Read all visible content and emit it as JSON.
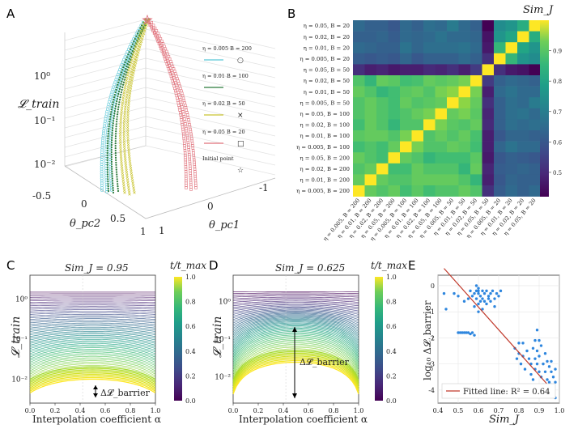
{
  "panel_labels": [
    "A",
    "B",
    "C",
    "D",
    "E"
  ],
  "chart_data": [
    {
      "id": "A",
      "type": "scatter3d",
      "xlabel": "θ_pc1",
      "ylabel": "θ_pc2",
      "zlabel": "𝓛_train",
      "pc1_ticks": [
        "-1",
        "0",
        "1"
      ],
      "pc2_ticks": [
        "-0.5",
        "0",
        "0.5",
        "1"
      ],
      "z_ticks": [
        "10⁰",
        "10⁻¹",
        "10⁻²"
      ],
      "legend": [
        {
          "label": "η = 0.005 B = 200",
          "marker": "○",
          "color": "#5bc8d8"
        },
        {
          "label": "η = 0.01  B = 100",
          "marker": "",
          "color": "#2b7a3a"
        },
        {
          "label": "η = 0.02  B = 50",
          "marker": "×",
          "color": "#c9c430"
        },
        {
          "label": "η = 0.05  B = 20",
          "marker": "□",
          "color": "#e0707a"
        },
        {
          "label": "Initial point",
          "marker": "☆",
          "color": "#888888"
        }
      ]
    },
    {
      "id": "B",
      "type": "heatmap",
      "colorbar_label": "Sim_J",
      "colorbar_ticks": [
        "0.9",
        "0.8",
        "0.7",
        "0.6",
        "0.5"
      ],
      "crange": [
        0.42,
        1.0
      ],
      "row_labels": [
        "η = 0.05, B = 20",
        "η = 0.02, B = 20",
        "η = 0.01, B = 20",
        "η = 0.005, B = 20",
        "η = 0.05, B = 50",
        "η = 0.02, B = 50",
        "η = 0.01, B = 50",
        "η = 0.005, B = 50",
        "η = 0.05, B = 100",
        "η = 0.02, B = 100",
        "η = 0.01, B = 100",
        "η = 0.005, B = 100",
        "η = 0.05, B = 200",
        "η = 0.02, B = 200",
        "η = 0.01, B = 200",
        "η = 0.005, B = 200"
      ],
      "col_labels": [
        "η = 0.005, B = 200",
        "η = 0.01, B = 200",
        "η = 0.02, B = 200",
        "η = 0.05, B = 200",
        "η = 0.005, B = 100",
        "η = 0.01, B = 100",
        "η = 0.02, B = 100",
        "η = 0.05, B = 100",
        "η = 0.005, B = 50",
        "η = 0.01, B = 50",
        "η = 0.02, B = 50",
        "η = 0.05, B = 50",
        "η = 0.005, B = 20",
        "η = 0.01, B = 20",
        "η = 0.02, B = 20",
        "η = 0.05, B = 20"
      ],
      "values": [
        [
          0.62,
          0.6,
          0.6,
          0.58,
          0.62,
          0.6,
          0.63,
          0.62,
          0.66,
          0.62,
          0.6,
          0.42,
          0.7,
          0.72,
          0.78,
          1.0
        ],
        [
          0.6,
          0.6,
          0.61,
          0.59,
          0.62,
          0.61,
          0.62,
          0.64,
          0.62,
          0.62,
          0.61,
          0.45,
          0.72,
          0.76,
          1.0,
          0.78
        ],
        [
          0.62,
          0.61,
          0.6,
          0.6,
          0.64,
          0.61,
          0.63,
          0.63,
          0.63,
          0.64,
          0.62,
          0.46,
          0.8,
          1.0,
          0.76,
          0.72
        ],
        [
          0.59,
          0.58,
          0.59,
          0.58,
          0.61,
          0.58,
          0.6,
          0.6,
          0.6,
          0.62,
          0.6,
          0.5,
          1.0,
          0.8,
          0.72,
          0.7
        ],
        [
          0.5,
          0.47,
          0.48,
          0.46,
          0.47,
          0.47,
          0.49,
          0.48,
          0.5,
          0.47,
          0.52,
          1.0,
          0.5,
          0.46,
          0.45,
          0.42
        ],
        [
          0.84,
          0.8,
          0.86,
          0.85,
          0.82,
          0.83,
          0.86,
          0.85,
          0.86,
          0.88,
          1.0,
          0.52,
          0.6,
          0.62,
          0.61,
          0.6
        ],
        [
          0.86,
          0.84,
          0.8,
          0.82,
          0.85,
          0.86,
          0.84,
          0.88,
          0.9,
          1.0,
          0.88,
          0.47,
          0.62,
          0.64,
          0.62,
          0.62
        ],
        [
          0.84,
          0.86,
          0.84,
          0.82,
          0.86,
          0.84,
          0.85,
          0.86,
          1.0,
          0.9,
          0.86,
          0.5,
          0.6,
          0.63,
          0.62,
          0.66
        ],
        [
          0.84,
          0.86,
          0.84,
          0.82,
          0.84,
          0.86,
          0.88,
          1.0,
          0.86,
          0.88,
          0.85,
          0.48,
          0.6,
          0.63,
          0.64,
          0.62
        ],
        [
          0.82,
          0.86,
          0.84,
          0.8,
          0.84,
          0.84,
          1.0,
          0.88,
          0.85,
          0.84,
          0.86,
          0.49,
          0.6,
          0.63,
          0.62,
          0.63
        ],
        [
          0.85,
          0.86,
          0.86,
          0.84,
          0.88,
          1.0,
          0.84,
          0.86,
          0.84,
          0.86,
          0.83,
          0.47,
          0.58,
          0.61,
          0.61,
          0.6
        ],
        [
          0.82,
          0.84,
          0.82,
          0.86,
          1.0,
          0.88,
          0.84,
          0.84,
          0.86,
          0.85,
          0.82,
          0.47,
          0.61,
          0.64,
          0.62,
          0.62
        ],
        [
          0.86,
          0.84,
          0.82,
          1.0,
          0.86,
          0.84,
          0.8,
          0.82,
          0.82,
          0.82,
          0.85,
          0.46,
          0.58,
          0.6,
          0.59,
          0.58
        ],
        [
          0.84,
          0.86,
          1.0,
          0.82,
          0.82,
          0.86,
          0.84,
          0.84,
          0.84,
          0.8,
          0.86,
          0.48,
          0.59,
          0.6,
          0.61,
          0.6
        ],
        [
          0.86,
          1.0,
          0.86,
          0.84,
          0.84,
          0.86,
          0.86,
          0.86,
          0.86,
          0.84,
          0.8,
          0.47,
          0.58,
          0.61,
          0.6,
          0.6
        ],
        [
          1.0,
          0.86,
          0.84,
          0.86,
          0.82,
          0.85,
          0.82,
          0.84,
          0.84,
          0.86,
          0.84,
          0.5,
          0.59,
          0.62,
          0.6,
          0.62
        ]
      ]
    },
    {
      "id": "C",
      "type": "line",
      "title": "Sim_J = 0.95",
      "xlabel": "Interpolation coefficient α",
      "ylabel": "𝓛_train",
      "x_ticks": [
        "0.0",
        "0.2",
        "0.4",
        "0.6",
        "0.8",
        "1.0"
      ],
      "y_ticks": [
        "10⁰",
        "10⁻¹",
        "10⁻²"
      ],
      "colorbar_label": "t/t_max",
      "colorbar_ticks": [
        "1.0",
        "0.8",
        "0.6",
        "0.4",
        "0.2",
        "0.0"
      ],
      "annotation": "Δ𝓛_barrier",
      "curve_count": 60,
      "loss_start": 1.5,
      "loss_end": 0.0045,
      "barrier_start": 0.0,
      "barrier_end": 0.38,
      "ylim_log10": [
        -2.6,
        0.6
      ]
    },
    {
      "id": "D",
      "type": "line",
      "title": "Sim_J = 0.625",
      "xlabel": "Interpolation coefficient α",
      "ylabel": "𝓛_train",
      "x_ticks": [
        "0.0",
        "0.2",
        "0.4",
        "0.6",
        "0.8",
        "1.0"
      ],
      "y_ticks": [
        "10⁰",
        "10⁻¹",
        "10⁻²"
      ],
      "colorbar_label": "t/t_max",
      "colorbar_ticks": [
        "1.0",
        "0.8",
        "0.6",
        "0.4",
        "0.2",
        "0.0"
      ],
      "annotation": "Δ𝓛_barrier",
      "curve_count": 60,
      "loss_start": 1.8,
      "loss_end": 0.0035,
      "barrier_start": 0.08,
      "barrier_end": 1.85,
      "ylim_log10": [
        -2.7,
        0.7
      ]
    },
    {
      "id": "E",
      "type": "scatter",
      "xlabel": "Sim_J",
      "ylabel": "log₁₀ Δ𝓛_barrier",
      "x_ticks": [
        "0.4",
        "0.5",
        "0.6",
        "0.7",
        "0.8",
        "0.9",
        "1.0"
      ],
      "y_ticks": [
        "0",
        "-1",
        "-2",
        "-3",
        "-4"
      ],
      "xlim": [
        0.4,
        1.0
      ],
      "ylim": [
        -4.5,
        0.4
      ],
      "legend": "Fitted line: R² = 0.64",
      "fit": {
        "slope": -8.7,
        "intercept": 4.4,
        "x_range": [
          0.43,
          0.97
        ]
      },
      "points": [
        [
          0.43,
          -0.3
        ],
        [
          0.44,
          -0.9
        ],
        [
          0.48,
          -0.3
        ],
        [
          0.5,
          -1.8
        ],
        [
          0.51,
          -1.8
        ],
        [
          0.52,
          -1.8
        ],
        [
          0.53,
          -1.8
        ],
        [
          0.54,
          -1.8
        ],
        [
          0.55,
          -1.8
        ],
        [
          0.56,
          -1.85
        ],
        [
          0.57,
          -1.8
        ],
        [
          0.58,
          -1.9
        ],
        [
          0.5,
          -0.4
        ],
        [
          0.53,
          -0.6
        ],
        [
          0.55,
          -0.5
        ],
        [
          0.56,
          -0.2
        ],
        [
          0.57,
          -0.4
        ],
        [
          0.58,
          -0.3
        ],
        [
          0.59,
          -0.2
        ],
        [
          0.6,
          -0.1
        ],
        [
          0.6,
          -0.3
        ],
        [
          0.61,
          -0.4
        ],
        [
          0.62,
          -0.2
        ],
        [
          0.62,
          -0.5
        ],
        [
          0.63,
          -0.3
        ],
        [
          0.64,
          -0.2
        ],
        [
          0.65,
          -0.4
        ],
        [
          0.66,
          -0.3
        ],
        [
          0.67,
          -0.2
        ],
        [
          0.68,
          -0.5
        ],
        [
          0.69,
          -0.3
        ],
        [
          0.7,
          -0.4
        ],
        [
          0.71,
          -0.2
        ],
        [
          0.59,
          -0.5
        ],
        [
          0.6,
          -0.7
        ],
        [
          0.61,
          -0.6
        ],
        [
          0.63,
          -0.6
        ],
        [
          0.64,
          -0.7
        ],
        [
          0.65,
          -0.5
        ],
        [
          0.66,
          -0.6
        ],
        [
          0.58,
          -0.8
        ],
        [
          0.62,
          -0.9
        ],
        [
          0.59,
          0.0
        ],
        [
          0.6,
          -0.2
        ],
        [
          0.6,
          -1.0
        ],
        [
          0.68,
          -0.8
        ],
        [
          0.78,
          -2.4
        ],
        [
          0.79,
          -2.8
        ],
        [
          0.8,
          -2.6
        ],
        [
          0.81,
          -3.0
        ],
        [
          0.82,
          -2.2
        ],
        [
          0.83,
          -3.2
        ],
        [
          0.84,
          -2.5
        ],
        [
          0.85,
          -2.8
        ],
        [
          0.86,
          -3.0
        ],
        [
          0.86,
          -3.4
        ],
        [
          0.87,
          -2.4
        ],
        [
          0.87,
          -3.6
        ],
        [
          0.88,
          -2.8
        ],
        [
          0.88,
          -3.2
        ],
        [
          0.89,
          -2.5
        ],
        [
          0.89,
          -3.0
        ],
        [
          0.9,
          -3.3
        ],
        [
          0.9,
          -2.7
        ],
        [
          0.9,
          -3.9
        ],
        [
          0.91,
          -2.3
        ],
        [
          0.91,
          -3.5
        ],
        [
          0.92,
          -3.0
        ],
        [
          0.92,
          -3.8
        ],
        [
          0.93,
          -2.6
        ],
        [
          0.93,
          -3.3
        ],
        [
          0.94,
          -3.6
        ],
        [
          0.94,
          -2.9
        ],
        [
          0.95,
          -3.1
        ],
        [
          0.95,
          -3.7
        ],
        [
          0.95,
          -4.1
        ],
        [
          0.96,
          -3.3
        ],
        [
          0.96,
          -2.9
        ],
        [
          0.96,
          -3.8
        ],
        [
          0.97,
          -3.5
        ],
        [
          0.97,
          -4.0
        ],
        [
          0.98,
          -3.7
        ],
        [
          0.98,
          -3.2
        ],
        [
          0.88,
          -2.1
        ],
        [
          0.89,
          -1.7
        ],
        [
          0.9,
          -2.1
        ],
        [
          0.85,
          -3.9
        ],
        [
          0.92,
          -4.2
        ],
        [
          0.98,
          -4.3
        ],
        [
          0.8,
          -2.2
        ],
        [
          0.82,
          -2.7
        ]
      ]
    }
  ]
}
